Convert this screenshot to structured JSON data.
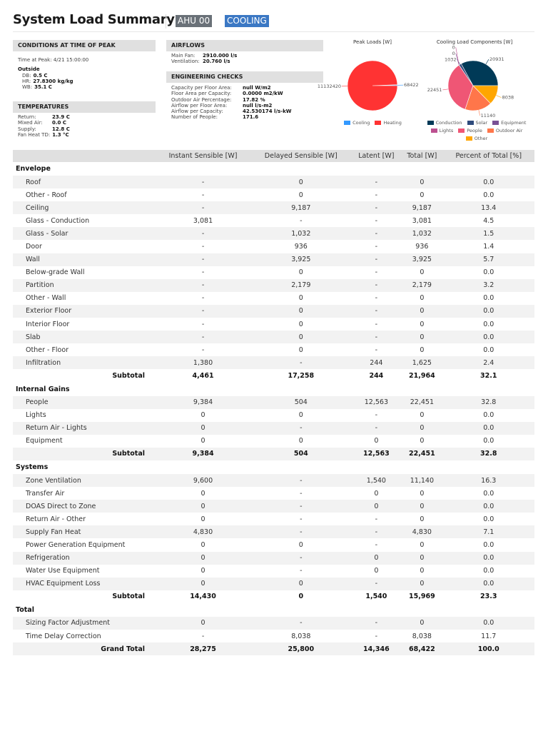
{
  "header": {
    "title": "System Load Summary",
    "system_tag": "AHU 00",
    "mode_tag": "COOLING"
  },
  "conditions": {
    "heading": "CONDITIONS AT TIME OF PEAK",
    "time_label": "Time at Peak:",
    "time_value": "4/21 15:00:00",
    "outside_label": "Outside",
    "items": [
      {
        "k": "DB:",
        "v": "0.5 C"
      },
      {
        "k": "HR:",
        "v": "27.8300 kg/kg"
      },
      {
        "k": "WB:",
        "v": "35.1 C"
      }
    ]
  },
  "temperatures": {
    "heading": "TEMPERATURES",
    "items": [
      {
        "k": "Return:",
        "v": "23.9 C"
      },
      {
        "k": "Mixed Air:",
        "v": "0.0 C"
      },
      {
        "k": "Supply:",
        "v": "12.8 C"
      },
      {
        "k": "Fan Heat TD:",
        "v": "1.3 °C"
      }
    ]
  },
  "airflows": {
    "heading": "AIRFLOWS",
    "items": [
      {
        "k": "Main Fan:",
        "v": "2910.000 l/s"
      },
      {
        "k": "Ventilation:",
        "v": "20.760 l/s"
      }
    ]
  },
  "engineering": {
    "heading": "ENGINEERING CHECKS",
    "items": [
      {
        "k": "Capacity per Floor Area:",
        "v": "null W/m2"
      },
      {
        "k": "Floor Area per Capacity:",
        "v": "0.0000 m2/kW"
      },
      {
        "k": "Outdoor Air Percentage:",
        "v": "17.82 %"
      },
      {
        "k": "Airflow per Floor Area:",
        "v": "null l/s-m2"
      },
      {
        "k": "Airflow per Capacity:",
        "v": "42.530174 l/s-kW"
      },
      {
        "k": "Number of People:",
        "v": "171.6"
      }
    ]
  },
  "chart_data": [
    {
      "type": "pie",
      "title": "Peak Loads [W]",
      "legend_placement": "bottom",
      "slices": [
        {
          "name": "Cooling",
          "value": 68422,
          "label": "68422",
          "color": "#3399ff"
        },
        {
          "name": "Heating",
          "value": 11132420,
          "label": "11132420",
          "color": "#ff3333"
        }
      ]
    },
    {
      "type": "pie",
      "title": "Cooling Load Components [W]",
      "legend_placement": "bottom",
      "slices": [
        {
          "name": "Conduction",
          "value": 20931,
          "label": "20931",
          "color": "#003a57"
        },
        {
          "name": "Solar",
          "value": 1032,
          "label": "1032",
          "color": "#2f4b7c"
        },
        {
          "name": "Equipment",
          "value": 0,
          "label": "0",
          "color": "#7a5195"
        },
        {
          "name": "Lights",
          "value": 0,
          "label": "0",
          "color": "#bc5090"
        },
        {
          "name": "People",
          "value": 22451,
          "label": "22451",
          "color": "#ef5675"
        },
        {
          "name": "Outdoor Air",
          "value": 11140,
          "label": "11140",
          "color": "#ff764a"
        },
        {
          "name": "Other",
          "value": 8038,
          "label": "8038",
          "color": "#ffa600"
        }
      ]
    }
  ],
  "table": {
    "columns": [
      "",
      "Instant Sensible [W]",
      "Delayed Sensible [W]",
      "Latent [W]",
      "Total [W]",
      "Percent of Total [%]"
    ],
    "sections": [
      {
        "name": "Envelope",
        "rows": [
          [
            "Roof",
            "-",
            "0",
            "-",
            "0",
            "0.0"
          ],
          [
            "Other - Roof",
            "-",
            "0",
            "-",
            "0",
            "0.0"
          ],
          [
            "Ceiling",
            "-",
            "9,187",
            "-",
            "9,187",
            "13.4"
          ],
          [
            "Glass - Conduction",
            "3,081",
            "-",
            "-",
            "3,081",
            "4.5"
          ],
          [
            "Glass - Solar",
            "-",
            "1,032",
            "-",
            "1,032",
            "1.5"
          ],
          [
            "Door",
            "-",
            "936",
            "-",
            "936",
            "1.4"
          ],
          [
            "Wall",
            "-",
            "3,925",
            "-",
            "3,925",
            "5.7"
          ],
          [
            "Below-grade Wall",
            "-",
            "0",
            "-",
            "0",
            "0.0"
          ],
          [
            "Partition",
            "-",
            "2,179",
            "-",
            "2,179",
            "3.2"
          ],
          [
            "Other - Wall",
            "-",
            "0",
            "-",
            "0",
            "0.0"
          ],
          [
            "Exterior Floor",
            "-",
            "0",
            "-",
            "0",
            "0.0"
          ],
          [
            "Interior Floor",
            "-",
            "0",
            "-",
            "0",
            "0.0"
          ],
          [
            "Slab",
            "-",
            "0",
            "-",
            "0",
            "0.0"
          ],
          [
            "Other - Floor",
            "-",
            "0",
            "-",
            "0",
            "0.0"
          ],
          [
            "Infiltration",
            "1,380",
            "-",
            "244",
            "1,625",
            "2.4"
          ]
        ],
        "subtotal": [
          "Subtotal",
          "4,461",
          "17,258",
          "244",
          "21,964",
          "32.1"
        ]
      },
      {
        "name": "Internal Gains",
        "rows": [
          [
            "People",
            "9,384",
            "504",
            "12,563",
            "22,451",
            "32.8"
          ],
          [
            "Lights",
            "0",
            "0",
            "-",
            "0",
            "0.0"
          ],
          [
            "Return Air - Lights",
            "0",
            "-",
            "-",
            "0",
            "0.0"
          ],
          [
            "Equipment",
            "0",
            "0",
            "0",
            "0",
            "0.0"
          ]
        ],
        "subtotal": [
          "Subtotal",
          "9,384",
          "504",
          "12,563",
          "22,451",
          "32.8"
        ]
      },
      {
        "name": "Systems",
        "rows": [
          [
            "Zone Ventilation",
            "9,600",
            "-",
            "1,540",
            "11,140",
            "16.3"
          ],
          [
            "Transfer Air",
            "0",
            "-",
            "0",
            "0",
            "0.0"
          ],
          [
            "DOAS Direct to Zone",
            "0",
            "-",
            "0",
            "0",
            "0.0"
          ],
          [
            "Return Air - Other",
            "0",
            "-",
            "-",
            "0",
            "0.0"
          ],
          [
            "Supply Fan Heat",
            "4,830",
            "-",
            "-",
            "4,830",
            "7.1"
          ],
          [
            "Power Generation Equipment",
            "0",
            "0",
            "-",
            "0",
            "0.0"
          ],
          [
            "Refrigeration",
            "0",
            "-",
            "0",
            "0",
            "0.0"
          ],
          [
            "Water Use Equipment",
            "0",
            "-",
            "0",
            "0",
            "0.0"
          ],
          [
            "HVAC Equipment Loss",
            "0",
            "0",
            "-",
            "0",
            "0.0"
          ]
        ],
        "subtotal": [
          "Subtotal",
          "14,430",
          "0",
          "1,540",
          "15,969",
          "23.3"
        ]
      },
      {
        "name": "Total",
        "rows": [
          [
            "Sizing Factor Adjustment",
            "0",
            "-",
            "-",
            "0",
            "0.0"
          ],
          [
            "Time Delay Correction",
            "-",
            "8,038",
            "-",
            "8,038",
            "11.7"
          ]
        ],
        "subtotal": [
          "Grand Total",
          "28,275",
          "25,800",
          "14,346",
          "68,422",
          "100.0"
        ]
      }
    ]
  }
}
